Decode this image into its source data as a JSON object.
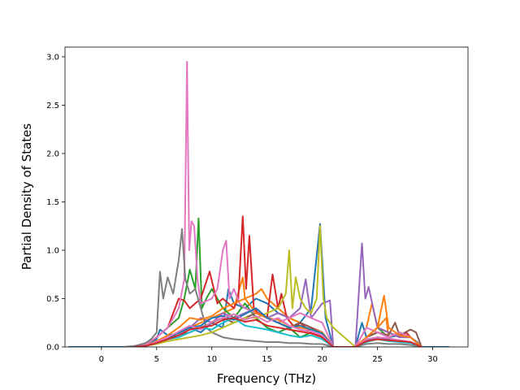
{
  "chart_data": {
    "type": "line",
    "title": "",
    "xlabel": "Frequency (THz)",
    "ylabel": "Partial Density of States",
    "xlim": [
      -3.3,
      33.2
    ],
    "ylim": [
      0.0,
      3.1
    ],
    "xticks": [
      "0",
      "5",
      "10",
      "15",
      "20",
      "25",
      "30"
    ],
    "yticks": [
      "0.0",
      "0.5",
      "1.0",
      "1.5",
      "2.0",
      "2.5",
      "3.0"
    ],
    "grid": false,
    "legend": "none",
    "series": [
      {
        "color": "#1f77b4",
        "x": [
          -3,
          2,
          3,
          4,
          5,
          5.3,
          6,
          7,
          8,
          9,
          10,
          11,
          11.5,
          12,
          13,
          14,
          15,
          16,
          17,
          18,
          19,
          19.8,
          20.3,
          21,
          22,
          23,
          23.6,
          24,
          25,
          26,
          27,
          28,
          28.6,
          29,
          31.5
        ],
        "values": [
          0,
          0,
          0,
          0.02,
          0.08,
          0.18,
          0.12,
          0.14,
          0.2,
          0.15,
          0.25,
          0.2,
          0.6,
          0.45,
          0.4,
          0.5,
          0.45,
          0.35,
          0.3,
          0.25,
          0.4,
          1.27,
          0.3,
          0,
          0,
          0,
          0.25,
          0.1,
          0.15,
          0.1,
          0.12,
          0.1,
          0.05,
          0,
          0
        ]
      },
      {
        "color": "#ff7f0e",
        "x": [
          3,
          4,
          5,
          6,
          7,
          8,
          9,
          10,
          11,
          12,
          12.8,
          13,
          14,
          14.5,
          15,
          16,
          17,
          18,
          19,
          20,
          21,
          23,
          24,
          24.5,
          25,
          25.8,
          26,
          27,
          28,
          29
        ],
        "values": [
          0,
          0.01,
          0.05,
          0.1,
          0.15,
          0.2,
          0.25,
          0.3,
          0.35,
          0.4,
          0.72,
          0.5,
          0.55,
          0.6,
          0.5,
          0.4,
          0.3,
          0.25,
          0.2,
          0.15,
          0,
          0,
          0.2,
          0.45,
          0.2,
          0.3,
          0.1,
          0.15,
          0.1,
          0
        ]
      },
      {
        "color": "#2ca02c",
        "x": [
          3,
          4,
          5,
          6,
          7,
          7.5,
          8,
          8.5,
          8.8,
          9.1,
          9.5,
          10,
          11,
          12,
          13,
          14,
          15,
          16,
          17,
          18,
          19,
          20,
          21,
          23,
          24,
          25,
          26,
          27,
          28,
          29
        ],
        "values": [
          0,
          0.02,
          0.1,
          0.2,
          0.3,
          0.5,
          0.8,
          0.6,
          1.33,
          0.4,
          0.5,
          0.6,
          0.4,
          0.3,
          0.45,
          0.3,
          0.2,
          0.15,
          0.2,
          0.1,
          0.15,
          0.1,
          0,
          0,
          0.1,
          0.2,
          0.1,
          0.15,
          0.1,
          0
        ]
      },
      {
        "color": "#d62728",
        "x": [
          3,
          4,
          5,
          6,
          7,
          7.5,
          8,
          9,
          9.8,
          10.5,
          11,
          12,
          12.4,
          12.8,
          13.1,
          13.4,
          13.8,
          14.2,
          15,
          15.5,
          16,
          16.3,
          16.8,
          17.5,
          18,
          19,
          20,
          21,
          23,
          24,
          25,
          26,
          27,
          27.6,
          28,
          29
        ],
        "values": [
          0,
          0.02,
          0.1,
          0.2,
          0.5,
          0.48,
          0.4,
          0.5,
          0.78,
          0.45,
          0.5,
          0.4,
          0.5,
          1.35,
          0.6,
          1.15,
          0.4,
          0.35,
          0.3,
          0.75,
          0.4,
          0.55,
          0.3,
          0.2,
          0.25,
          0.15,
          0.1,
          0,
          0,
          0.1,
          0.2,
          0.15,
          0.1,
          0.15,
          0.1,
          0
        ]
      },
      {
        "color": "#9467bd",
        "x": [
          3,
          4,
          5,
          6,
          7,
          8,
          9,
          10,
          11,
          12,
          13,
          14,
          15,
          16,
          17,
          18,
          18.5,
          19,
          20,
          20.7,
          21,
          23,
          23.6,
          23.9,
          24.2,
          25,
          26,
          27,
          28,
          29
        ],
        "values": [
          0,
          0.01,
          0.05,
          0.1,
          0.15,
          0.2,
          0.3,
          0.25,
          0.35,
          0.3,
          0.35,
          0.4,
          0.3,
          0.35,
          0.3,
          0.4,
          0.7,
          0.3,
          0.45,
          0.48,
          0,
          0,
          1.07,
          0.5,
          0.62,
          0.2,
          0.15,
          0.1,
          0.1,
          0
        ]
      },
      {
        "color": "#8c564b",
        "x": [
          3,
          4,
          5,
          6,
          7,
          8,
          9,
          10,
          11,
          12,
          13,
          14,
          15,
          16,
          17,
          18,
          19,
          20,
          21,
          23,
          24,
          25,
          26,
          26.6,
          27,
          28,
          28.5,
          29
        ],
        "values": [
          0,
          0.01,
          0.05,
          0.1,
          0.12,
          0.15,
          0.2,
          0.25,
          0.3,
          0.25,
          0.3,
          0.35,
          0.3,
          0.25,
          0.2,
          0.25,
          0.2,
          0.15,
          0,
          0,
          0.1,
          0.15,
          0.12,
          0.25,
          0.12,
          0.18,
          0.15,
          0
        ]
      },
      {
        "color": "#e377c2",
        "x": [
          3,
          4,
          5,
          6,
          7,
          7.5,
          7.75,
          7.95,
          8.15,
          8.4,
          8.7,
          9,
          10,
          10.5,
          11,
          11.3,
          11.6,
          12,
          12.5,
          13,
          14,
          15,
          16,
          17,
          18,
          19,
          20,
          21,
          23,
          24,
          25,
          26,
          27,
          28,
          29
        ],
        "values": [
          0,
          0.02,
          0.1,
          0.2,
          0.4,
          0.7,
          2.95,
          1.0,
          1.3,
          1.25,
          0.7,
          0.45,
          0.5,
          0.6,
          1.0,
          1.1,
          0.5,
          0.6,
          0.45,
          0.4,
          0.35,
          0.3,
          0.25,
          0.3,
          0.35,
          0.3,
          0.25,
          0,
          0,
          0.2,
          0.15,
          0.1,
          0.15,
          0.1,
          0
        ]
      },
      {
        "color": "#7f7f7f",
        "x": [
          2,
          3,
          4,
          4.5,
          5,
          5.3,
          5.6,
          6,
          6.5,
          7,
          7.3,
          7.6,
          8,
          8.5,
          9,
          9.5,
          10,
          11,
          12,
          13,
          14,
          15,
          16,
          17,
          18,
          19,
          20,
          21,
          23,
          24,
          25,
          26,
          27,
          28,
          29
        ],
        "values": [
          0,
          0.01,
          0.04,
          0.08,
          0.15,
          0.78,
          0.5,
          0.72,
          0.55,
          0.9,
          1.22,
          0.7,
          0.55,
          0.6,
          0.4,
          0.2,
          0.15,
          0.1,
          0.08,
          0.07,
          0.06,
          0.05,
          0.05,
          0.04,
          0.04,
          0.03,
          0.03,
          0,
          0,
          0.03,
          0.04,
          0.03,
          0.03,
          0.02,
          0
        ]
      },
      {
        "color": "#bcbd22",
        "x": [
          3,
          4,
          5,
          6,
          7,
          8,
          9,
          10,
          11,
          12,
          13,
          14,
          15,
          16,
          16.7,
          17,
          17.3,
          17.6,
          18,
          18.5,
          19,
          19.5,
          19.8,
          20.1,
          20.4,
          21,
          23,
          24,
          25,
          26,
          27,
          28,
          29
        ],
        "values": [
          0,
          0.01,
          0.03,
          0.06,
          0.08,
          0.1,
          0.12,
          0.15,
          0.2,
          0.25,
          0.3,
          0.3,
          0.35,
          0.4,
          0.55,
          1.0,
          0.4,
          0.72,
          0.5,
          0.4,
          0.35,
          0.5,
          1.25,
          0.5,
          0.3,
          0.2,
          0,
          0.05,
          0.1,
          0.08,
          0.06,
          0.05,
          0
        ]
      },
      {
        "color": "#17becf",
        "x": [
          3,
          4,
          5,
          6,
          7,
          8,
          9,
          10,
          11,
          12,
          13,
          14,
          15,
          16,
          17,
          18,
          19,
          20,
          21,
          23,
          24,
          25,
          26,
          27,
          28,
          29
        ],
        "values": [
          0,
          0.01,
          0.04,
          0.08,
          0.1,
          0.15,
          0.2,
          0.18,
          0.25,
          0.3,
          0.22,
          0.2,
          0.18,
          0.15,
          0.12,
          0.1,
          0.12,
          0.08,
          0,
          0,
          0.05,
          0.08,
          0.06,
          0.05,
          0.04,
          0
        ]
      },
      {
        "color": "#ff7f0e",
        "x": [
          3,
          4,
          5,
          6,
          7,
          8,
          9,
          10,
          11,
          12,
          13,
          14,
          15,
          16,
          17,
          18,
          19,
          20,
          21,
          23,
          24,
          25,
          25.6,
          26,
          27,
          28,
          29
        ],
        "values": [
          0,
          0.01,
          0.06,
          0.12,
          0.2,
          0.3,
          0.28,
          0.32,
          0.4,
          0.45,
          0.5,
          0.35,
          0.3,
          0.28,
          0.22,
          0.2,
          0.18,
          0.15,
          0,
          0,
          0.1,
          0.2,
          0.53,
          0.2,
          0.12,
          0.1,
          0
        ]
      },
      {
        "color": "#1f77b4",
        "x": [
          3,
          4,
          5,
          6,
          7,
          8,
          9,
          10,
          11,
          12,
          13,
          14,
          15,
          16,
          17,
          18,
          19,
          20,
          21,
          23,
          24,
          25,
          26,
          27,
          28,
          29
        ],
        "values": [
          0,
          0.01,
          0.04,
          0.09,
          0.15,
          0.2,
          0.22,
          0.3,
          0.32,
          0.28,
          0.34,
          0.4,
          0.3,
          0.25,
          0.2,
          0.22,
          0.18,
          0.14,
          0,
          0,
          0.06,
          0.1,
          0.08,
          0.07,
          0.05,
          0
        ]
      },
      {
        "color": "#e377c2",
        "x": [
          3,
          4,
          5,
          6,
          7,
          8,
          9,
          10,
          11,
          12,
          13,
          14,
          15,
          16,
          17,
          18,
          19,
          20,
          21,
          23,
          24,
          25,
          26,
          27,
          28,
          29
        ],
        "values": [
          0,
          0.01,
          0.05,
          0.1,
          0.16,
          0.22,
          0.18,
          0.26,
          0.3,
          0.34,
          0.28,
          0.32,
          0.26,
          0.3,
          0.22,
          0.18,
          0.16,
          0.12,
          0,
          0,
          0.08,
          0.1,
          0.09,
          0.07,
          0.05,
          0
        ]
      },
      {
        "color": "#d62728",
        "x": [
          3,
          4,
          5,
          6,
          7,
          8,
          9,
          10,
          11,
          12,
          13,
          14,
          15,
          16,
          17,
          18,
          19,
          20,
          21,
          23,
          24,
          25,
          26,
          27,
          28,
          29
        ],
        "values": [
          0,
          0.01,
          0.04,
          0.08,
          0.12,
          0.18,
          0.2,
          0.22,
          0.28,
          0.3,
          0.26,
          0.28,
          0.22,
          0.2,
          0.18,
          0.16,
          0.14,
          0.1,
          0,
          0,
          0.06,
          0.08,
          0.07,
          0.06,
          0.05,
          0
        ]
      }
    ]
  }
}
